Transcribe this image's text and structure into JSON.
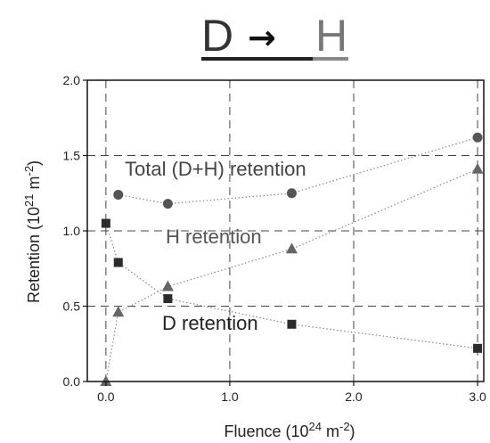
{
  "header": {
    "from_label": "D",
    "arrow": "→",
    "to_label": "H"
  },
  "chart_data": {
    "type": "scatter",
    "xlabel": {
      "main": "Fluence (10",
      "sup": "24",
      "mid": " m",
      "sup2": "-2",
      "end": ")"
    },
    "ylabel": {
      "main": "Retention (10",
      "sup": "21",
      "mid": " m",
      "sup2": "-2",
      "end": ")"
    },
    "xlim": [
      -0.15,
      3.05
    ],
    "ylim": [
      0.0,
      2.0
    ],
    "x_ticks": [
      0.0,
      1.0,
      2.0,
      3.0
    ],
    "x_tick_labels": [
      "0.0",
      "1.0",
      "2.0",
      "3.0"
    ],
    "y_ticks": [
      0.0,
      0.5,
      1.0,
      1.5,
      2.0
    ],
    "y_tick_labels": [
      "0.0",
      "0.5",
      "1.0",
      "1.5",
      "2.0"
    ],
    "grid": true,
    "series": [
      {
        "name": "Total (D+H) retention",
        "marker": "circle",
        "color": "#555555",
        "x": [
          0.1,
          0.5,
          1.5,
          3.0
        ],
        "y": [
          1.24,
          1.18,
          1.25,
          1.62
        ]
      },
      {
        "name": "H retention",
        "marker": "triangle",
        "color": "#666666",
        "x": [
          0.0,
          0.1,
          0.5,
          1.5,
          3.0
        ],
        "y": [
          0.0,
          0.46,
          0.63,
          0.88,
          1.41
        ]
      },
      {
        "name": "D retention",
        "marker": "square",
        "color": "#2b2b2b",
        "x": [
          0.0,
          0.1,
          0.5,
          1.5,
          3.0
        ],
        "y": [
          1.05,
          0.79,
          0.55,
          0.38,
          0.22
        ]
      }
    ]
  }
}
